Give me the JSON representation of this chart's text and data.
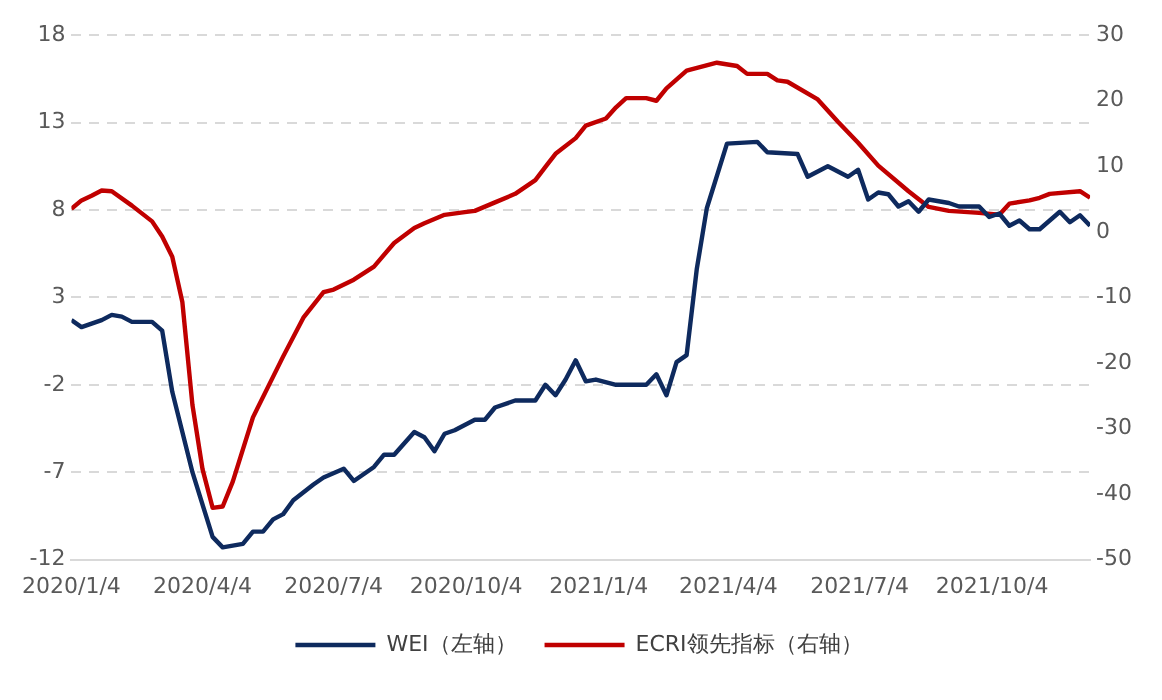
{
  "chart_data": {
    "type": "line",
    "xlim": [
      "2020-01-04",
      "2021-12-11"
    ],
    "xticks": [
      {
        "value": "2020-01-04",
        "label": "2020/1/4"
      },
      {
        "value": "2020-04-04",
        "label": "2020/4/4"
      },
      {
        "value": "2020-07-04",
        "label": "2020/7/4"
      },
      {
        "value": "2020-10-04",
        "label": "2020/10/4"
      },
      {
        "value": "2021-01-04",
        "label": "2021/1/4"
      },
      {
        "value": "2021-04-04",
        "label": "2021/4/4"
      },
      {
        "value": "2021-07-04",
        "label": "2021/7/4"
      },
      {
        "value": "2021-10-04",
        "label": "2021/10/4"
      }
    ],
    "ylim": [
      -12,
      18
    ],
    "yticks": [
      -12,
      -7,
      -2,
      3,
      8,
      13,
      18
    ],
    "y2lim": [
      -50,
      30
    ],
    "y2ticks": [
      -50,
      -40,
      -30,
      -20,
      -10,
      0,
      10,
      20,
      30
    ],
    "grid": "y",
    "legend": "bottom",
    "marker": "none",
    "line_style": "solid",
    "series": [
      {
        "name": "WEI（左轴）",
        "color": "#0e2a5e",
        "x": [
          "2020-01-04",
          "2020-01-11",
          "2020-01-25",
          "2020-02-01",
          "2020-02-08",
          "2020-02-15",
          "2020-02-29",
          "2020-03-07",
          "2020-03-14",
          "2020-03-28",
          "2020-04-11",
          "2020-04-18",
          "2020-05-02",
          "2020-05-09",
          "2020-05-16",
          "2020-05-23",
          "2020-05-30",
          "2020-06-06",
          "2020-06-20",
          "2020-06-27",
          "2020-07-11",
          "2020-07-18",
          "2020-08-01",
          "2020-08-08",
          "2020-08-15",
          "2020-08-29",
          "2020-09-05",
          "2020-09-12",
          "2020-09-19",
          "2020-09-26",
          "2020-10-10",
          "2020-10-17",
          "2020-10-24",
          "2020-11-07",
          "2020-11-21",
          "2020-11-28",
          "2020-12-05",
          "2020-12-12",
          "2020-12-19",
          "2020-12-26",
          "2021-01-02",
          "2021-01-16",
          "2021-02-06",
          "2021-02-13",
          "2021-02-20",
          "2021-02-27",
          "2021-03-06",
          "2021-03-13",
          "2021-03-20",
          "2021-04-03",
          "2021-04-24",
          "2021-05-01",
          "2021-05-22",
          "2021-05-29",
          "2021-06-12",
          "2021-06-26",
          "2021-07-03",
          "2021-07-10",
          "2021-07-17",
          "2021-07-24",
          "2021-07-31",
          "2021-08-07",
          "2021-08-14",
          "2021-08-21",
          "2021-09-04",
          "2021-09-11",
          "2021-09-25",
          "2021-10-02",
          "2021-10-09",
          "2021-10-16",
          "2021-10-23",
          "2021-10-30",
          "2021-11-06",
          "2021-11-20",
          "2021-11-27",
          "2021-12-04",
          "2021-12-11"
        ],
        "values": [
          1.7,
          1.3,
          1.7,
          2.0,
          1.9,
          1.6,
          1.6,
          1.1,
          -2.4,
          -7.0,
          -10.7,
          -11.3,
          -11.1,
          -10.4,
          -10.4,
          -9.7,
          -9.4,
          -8.6,
          -7.7,
          -7.3,
          -6.8,
          -7.5,
          -6.7,
          -6.0,
          -6.0,
          -4.7,
          -5.0,
          -5.8,
          -4.8,
          -4.6,
          -4.0,
          -4.0,
          -3.3,
          -2.9,
          -2.9,
          -2.0,
          -2.6,
          -1.7,
          -0.6,
          -1.8,
          -1.7,
          -2.0,
          -2.0,
          -1.4,
          -2.6,
          -0.7,
          -0.3,
          4.6,
          8.1,
          11.8,
          11.9,
          11.3,
          11.2,
          9.9,
          10.5,
          9.9,
          10.3,
          8.6,
          9.0,
          8.9,
          8.2,
          8.5,
          7.9,
          8.6,
          8.4,
          8.2,
          8.2,
          7.6,
          7.8,
          7.1,
          7.4,
          6.9,
          6.9,
          7.9,
          7.3,
          7.7,
          7.1
        ]
      },
      {
        "name": "ECRI领先指标（右轴）",
        "color": "#c00000",
        "axis": "y2",
        "x": [
          "2020-01-04",
          "2020-01-11",
          "2020-01-18",
          "2020-01-25",
          "2020-02-01",
          "2020-02-15",
          "2020-02-29",
          "2020-03-07",
          "2020-03-14",
          "2020-03-21",
          "2020-03-28",
          "2020-04-04",
          "2020-04-11",
          "2020-04-18",
          "2020-04-25",
          "2020-05-09",
          "2020-05-30",
          "2020-06-13",
          "2020-06-27",
          "2020-07-04",
          "2020-07-18",
          "2020-08-01",
          "2020-08-15",
          "2020-08-29",
          "2020-09-05",
          "2020-09-19",
          "2020-10-03",
          "2020-10-10",
          "2020-10-24",
          "2020-11-07",
          "2020-11-21",
          "2020-11-28",
          "2020-12-05",
          "2020-12-19",
          "2020-12-26",
          "2021-01-09",
          "2021-01-16",
          "2021-01-23",
          "2021-02-06",
          "2021-02-13",
          "2021-02-20",
          "2021-03-06",
          "2021-03-27",
          "2021-04-10",
          "2021-04-17",
          "2021-05-01",
          "2021-05-08",
          "2021-05-15",
          "2021-06-05",
          "2021-06-19",
          "2021-07-03",
          "2021-07-17",
          "2021-08-07",
          "2021-08-21",
          "2021-09-04",
          "2021-09-25",
          "2021-10-09",
          "2021-10-16",
          "2021-10-30",
          "2021-11-06",
          "2021-11-13",
          "2021-12-04",
          "2021-12-11"
        ],
        "values": [
          3.5,
          4.8,
          5.5,
          6.3,
          6.2,
          4.0,
          1.6,
          -0.7,
          -3.8,
          -10.7,
          -26.4,
          -36.2,
          -42.1,
          -41.9,
          -38.1,
          -28.3,
          -19.0,
          -13.1,
          -9.2,
          -8.8,
          -7.3,
          -5.3,
          -1.7,
          0.6,
          1.3,
          2.6,
          3.0,
          3.2,
          4.5,
          5.8,
          7.9,
          9.9,
          11.9,
          14.3,
          16.2,
          17.3,
          19.0,
          20.4,
          20.4,
          20.0,
          21.9,
          24.6,
          25.8,
          25.3,
          24.1,
          24.1,
          23.1,
          22.9,
          20.2,
          16.8,
          13.6,
          10.1,
          6.2,
          3.8,
          3.2,
          2.9,
          2.6,
          4.3,
          4.8,
          5.2,
          5.8,
          6.2,
          5.2
        ]
      }
    ]
  }
}
